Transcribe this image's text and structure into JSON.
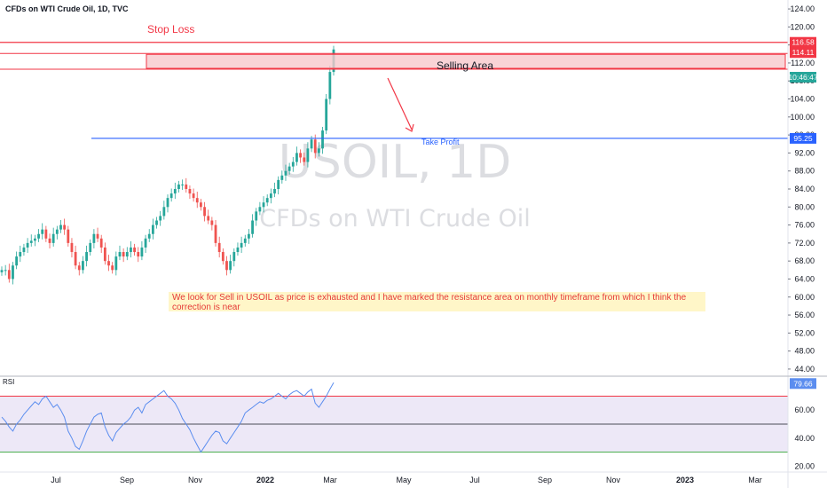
{
  "header": {
    "title": "CFDs on WTI Crude Oil, 1D, TVC"
  },
  "watermark": {
    "symbol": "USOIL, 1D",
    "description": "CFDs on WTI Crude Oil"
  },
  "annotations": {
    "stop_loss": "Stop Loss",
    "selling_area": "Selling Area",
    "take_profit": "Take Profit",
    "note": "We look for Sell in USOIL as price is exhausted and I have marked the resistance area on monthly timeframe from which I think the correction is near"
  },
  "colors": {
    "stop": "#f23645",
    "target": "#2962ff",
    "zone_fill": "#f8c8cc",
    "up": "#26a69a",
    "down": "#ef5350",
    "rsi": "#5b8def",
    "rsi_fill": "#ede8f7"
  },
  "chart_data": [
    {
      "type": "candlestick",
      "title": "CFDs on WTI Crude Oil, 1D, TVC",
      "x_axis": {
        "tick_labels": [
          "Jul",
          "Sep",
          "Nov",
          "2022",
          "Mar",
          "May",
          "Jul",
          "Sep",
          "Nov",
          "2023",
          "Mar"
        ]
      },
      "y_axis": {
        "range": [
          43,
          125
        ],
        "tick_labels": [
          "124.00",
          "120.00",
          "116.00",
          "112.00",
          "108.00",
          "104.00",
          "100.00",
          "96.00",
          "92.00",
          "88.00",
          "84.00",
          "80.00",
          "76.00",
          "72.00",
          "68.00",
          "64.00",
          "60.00",
          "56.00",
          "52.00",
          "48.00",
          "44.00"
        ]
      },
      "price_badges": [
        "116.58",
        "114.11",
        "10:46:47",
        "95.25"
      ],
      "levels": {
        "stop_loss": 116.58,
        "selling_area": [
          111,
          114.11
        ],
        "take_profit": 95.25
      },
      "closes": [
        66,
        66,
        64,
        67,
        69,
        70,
        71,
        72,
        72.5,
        73,
        74,
        75,
        73,
        72,
        74,
        75,
        76,
        75,
        72,
        70,
        67,
        66,
        68,
        70,
        72,
        74,
        73,
        71,
        68,
        67,
        66,
        69,
        70,
        69,
        70,
        71,
        70,
        69,
        71,
        73,
        74,
        76,
        77,
        78,
        80,
        82,
        83,
        84,
        85,
        85,
        84,
        83,
        82,
        81,
        80,
        78,
        77,
        76,
        72,
        70,
        68,
        66,
        68,
        70,
        71,
        72,
        73,
        74,
        77,
        79,
        80,
        81,
        82,
        83,
        84,
        86,
        87,
        88,
        89,
        90,
        92,
        91,
        90,
        93,
        95,
        92,
        93,
        97,
        104,
        110,
        115
      ]
    },
    {
      "type": "line",
      "title": "RSI",
      "y_axis": {
        "range": [
          17,
          83
        ],
        "tick_labels": [
          "60.00",
          "40.00",
          "20.00"
        ]
      },
      "badge": "79.66",
      "levels": [
        70,
        50,
        30
      ],
      "values": [
        55,
        52,
        48,
        45,
        50,
        53,
        57,
        60,
        63,
        66,
        64,
        68,
        70,
        66,
        62,
        64,
        60,
        55,
        45,
        40,
        34,
        32,
        38,
        45,
        50,
        55,
        57,
        58,
        48,
        42,
        38,
        44,
        47,
        50,
        52,
        55,
        60,
        62,
        58,
        64,
        66,
        68,
        70,
        72,
        74,
        70,
        68,
        65,
        60,
        54,
        50,
        46,
        40,
        35,
        30,
        34,
        38,
        42,
        45,
        44,
        38,
        36,
        40,
        44,
        48,
        52,
        58,
        60,
        62,
        64,
        66,
        65,
        67,
        68,
        70,
        72,
        70,
        68,
        71,
        73,
        74,
        72,
        70,
        73,
        75,
        65,
        62,
        66,
        70,
        75,
        79.66
      ]
    }
  ]
}
